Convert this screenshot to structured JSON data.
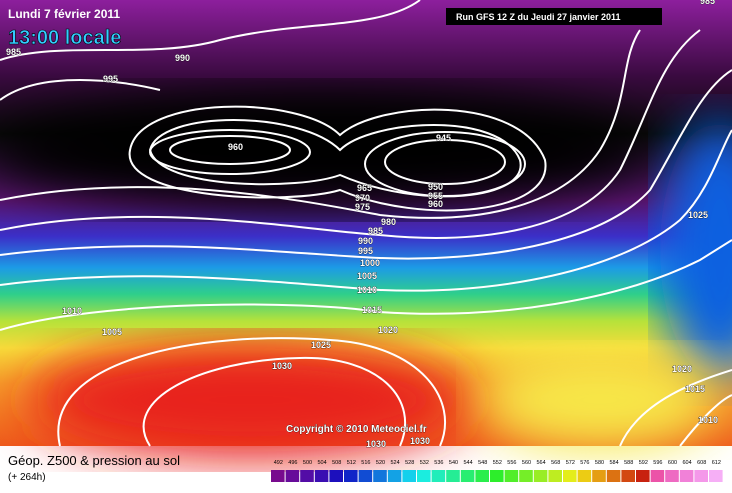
{
  "header": {
    "date": "Lundi 7 février 2011",
    "time": "13:00 locale",
    "run": "Run GFS 12 Z du Jeudi 27 janvier 2011"
  },
  "copyright": "Copyright © 2010 Meteociel.fr",
  "isobar_labels": [
    985,
    990,
    995,
    960,
    945,
    965,
    970,
    975,
    950,
    955,
    960,
    980,
    985,
    990,
    995,
    1000,
    1005,
    1010,
    1015,
    1020,
    1025,
    1030,
    1030,
    1030,
    1010,
    1005,
    1025,
    1020,
    1015,
    1010,
    985
  ],
  "legend": {
    "title": "Géop. Z500 & pression au sol",
    "lead": "(+ 264h)",
    "scale": [
      492,
      496,
      500,
      504,
      508,
      512,
      516,
      520,
      524,
      528,
      532,
      536,
      540,
      544,
      548,
      552,
      556,
      560,
      564,
      568,
      572,
      576,
      580,
      584,
      588,
      592,
      596,
      600,
      604,
      608,
      612
    ]
  }
}
